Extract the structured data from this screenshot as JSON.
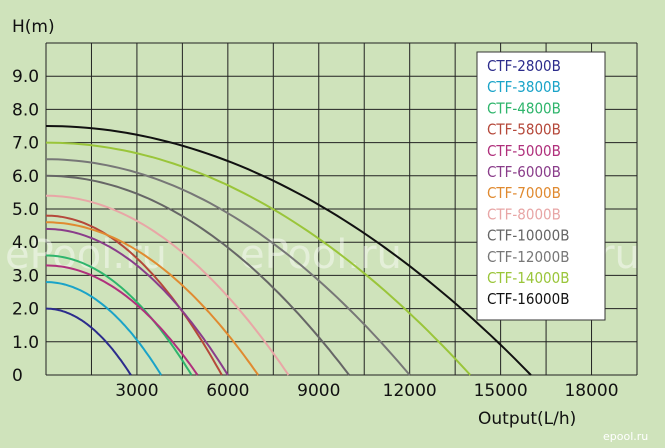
{
  "chart_data": {
    "type": "line",
    "xlabel": "Output(L/h)",
    "ylabel": "H(m)",
    "xlim": [
      0,
      19500
    ],
    "ylim": [
      0,
      10
    ],
    "x_ticks": [
      {
        "value": 3000,
        "label": "3000"
      },
      {
        "value": 6000,
        "label": "6000"
      },
      {
        "value": 9000,
        "label": "9000"
      },
      {
        "value": 12000,
        "label": "12000"
      },
      {
        "value": 15000,
        "label": "15000"
      },
      {
        "value": 18000,
        "label": "18000"
      }
    ],
    "y_ticks": [
      {
        "value": 0,
        "label": "0"
      },
      {
        "value": 1,
        "label": "1.0"
      },
      {
        "value": 2,
        "label": "2.0"
      },
      {
        "value": 3,
        "label": "3.0"
      },
      {
        "value": 4,
        "label": "4.0"
      },
      {
        "value": 5,
        "label": "5.0"
      },
      {
        "value": 6,
        "label": "6.0"
      },
      {
        "value": 7,
        "label": "7.0"
      },
      {
        "value": 8,
        "label": "8.0"
      },
      {
        "value": 9,
        "label": "9.0"
      }
    ],
    "grid": true,
    "legend_position": "top-right",
    "series": [
      {
        "name": "CTF-2800B",
        "color": "#2c2c8c",
        "max_head": 2.0,
        "max_flow": 2800
      },
      {
        "name": "CTF-3800B",
        "color": "#1aa3c8",
        "max_head": 2.8,
        "max_flow": 3800
      },
      {
        "name": "CTF-4800B",
        "color": "#2fb56c",
        "max_head": 3.6,
        "max_flow": 4800
      },
      {
        "name": "CTF-5800B",
        "color": "#b5483a",
        "max_head": 4.8,
        "max_flow": 5800
      },
      {
        "name": "CTF-5000B",
        "color": "#b0307c",
        "max_head": 3.3,
        "max_flow": 5000
      },
      {
        "name": "CTF-6000B",
        "color": "#8a3d8a",
        "max_head": 4.4,
        "max_flow": 6000
      },
      {
        "name": "CTF-7000B",
        "color": "#e08a30",
        "max_head": 4.6,
        "max_flow": 7000
      },
      {
        "name": "CTF-8000B",
        "color": "#e8a6a6",
        "max_head": 5.4,
        "max_flow": 8000
      },
      {
        "name": "CTF-10000B",
        "color": "#666666",
        "max_head": 6.0,
        "max_flow": 10000
      },
      {
        "name": "CTF-12000B",
        "color": "#777777",
        "max_head": 6.5,
        "max_flow": 12000
      },
      {
        "name": "CTF-14000B",
        "color": "#9ac53a",
        "max_head": 7.0,
        "max_flow": 14000
      },
      {
        "name": "CTF-16000B",
        "color": "#111111",
        "max_head": 7.5,
        "max_flow": 16000
      }
    ]
  },
  "watermarks": [
    "ePool.ru",
    "ePool.ru",
    "ePool.ru"
  ],
  "corner_watermark": "epool.ru",
  "colors": {
    "background": "#cfe3bb",
    "grid": "#222222"
  }
}
